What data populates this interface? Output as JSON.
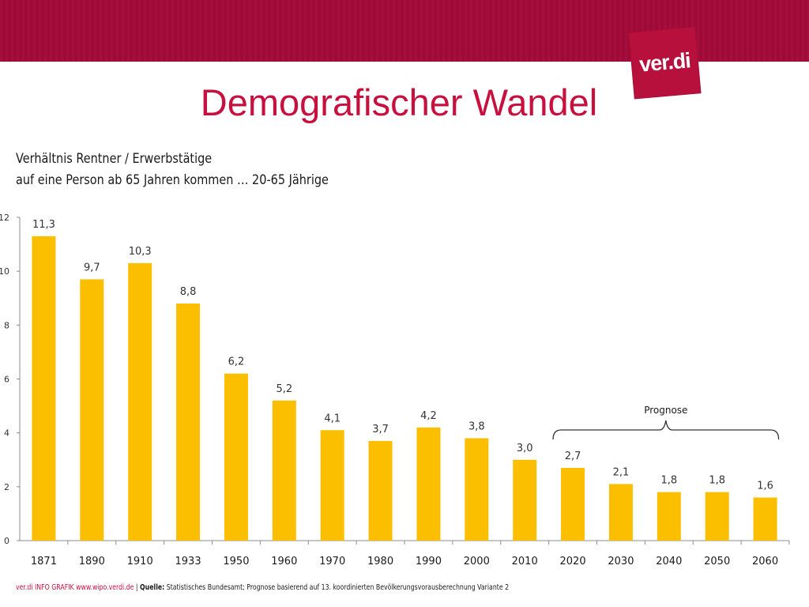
{
  "header": {
    "logo_text": "ver.di",
    "brand_color": "#b8103c"
  },
  "title": "Demografischer Wandel",
  "subtitle_line1": "Verhältnis Rentner / Erwerbstätige",
  "subtitle_line2": "auf eine Person ab 65 Jahren kommen … 20-65 Jährige",
  "chart_data": {
    "type": "bar",
    "categories": [
      "1871",
      "1890",
      "1910",
      "1933",
      "1950",
      "1960",
      "1970",
      "1980",
      "1990",
      "2000",
      "2010",
      "2020",
      "2030",
      "2040",
      "2050",
      "2060"
    ],
    "values": [
      11.3,
      9.7,
      10.3,
      8.8,
      6.2,
      5.2,
      4.1,
      3.7,
      4.2,
      3.8,
      3.0,
      2.7,
      2.1,
      1.8,
      1.8,
      1.6
    ],
    "value_labels": [
      "11,3",
      "9,7",
      "10,3",
      "8,8",
      "6,2",
      "5,2",
      "4,1",
      "3,7",
      "4,2",
      "3,8",
      "3,0",
      "2,7",
      "2,1",
      "1,8",
      "1,8",
      "1,6"
    ],
    "ylim": [
      0,
      12
    ],
    "y_ticks": [
      0,
      2,
      4,
      6,
      8,
      10,
      12
    ],
    "bar_color": "#fbbf00",
    "grid": false,
    "annotation": {
      "text": "Prognose",
      "from_category": "2020",
      "to_category": "2060"
    }
  },
  "footer": {
    "brand_text": "ver.di INFO GRAFIK www.wipo.verdi.de",
    "separator": "|",
    "source_label": "Quelle:",
    "source_text": "Statistisches Bundesamt; Prognose  basierend auf 13.  koordinierten Bevölkerungsvorausberechnung Variante 2"
  }
}
